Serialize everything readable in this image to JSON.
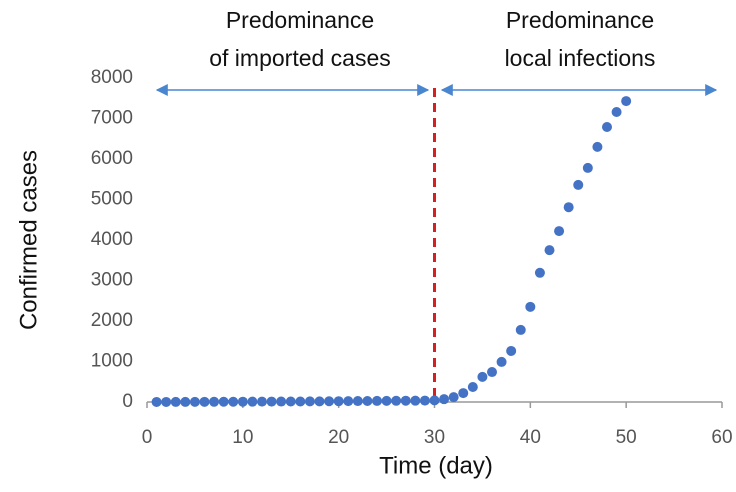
{
  "chart_data": {
    "type": "scatter",
    "x": [
      1,
      2,
      3,
      4,
      5,
      6,
      7,
      8,
      9,
      10,
      11,
      12,
      13,
      14,
      15,
      16,
      17,
      18,
      19,
      20,
      21,
      22,
      23,
      24,
      25,
      26,
      27,
      28,
      29,
      30,
      31,
      32,
      33,
      34,
      35,
      36,
      37,
      38,
      39,
      40,
      41,
      42,
      43,
      44,
      45,
      46,
      47,
      48,
      49,
      50
    ],
    "series": [
      {
        "color": "#4472c4",
        "values": [
          1,
          1,
          2,
          2,
          3,
          4,
          5,
          6,
          6,
          7,
          8,
          9,
          10,
          11,
          12,
          13,
          15,
          16,
          18,
          20,
          22,
          24,
          25,
          27,
          28,
          30,
          32,
          33,
          35,
          40,
          70,
          120,
          220,
          370,
          620,
          740,
          990,
          1260,
          1780,
          2350,
          3190,
          3750,
          4220,
          4810,
          5360,
          5780,
          6300,
          6790,
          7160,
          7430
        ]
      }
    ],
    "xlim": [
      0,
      60
    ],
    "xticks": [
      0,
      10,
      20,
      30,
      40,
      50,
      60
    ],
    "ylim": [
      0,
      8000
    ],
    "yticks": [
      0,
      1000,
      2000,
      3000,
      4000,
      5000,
      6000,
      7000,
      8000
    ],
    "x_label": "Time (day)",
    "y_label": "Confirmed cases",
    "divider_x": 30,
    "divider_color": "#d42020",
    "annotations": [
      [
        "Predominance",
        "of imported cases"
      ],
      [
        "Predominance",
        "local infections"
      ]
    ]
  }
}
